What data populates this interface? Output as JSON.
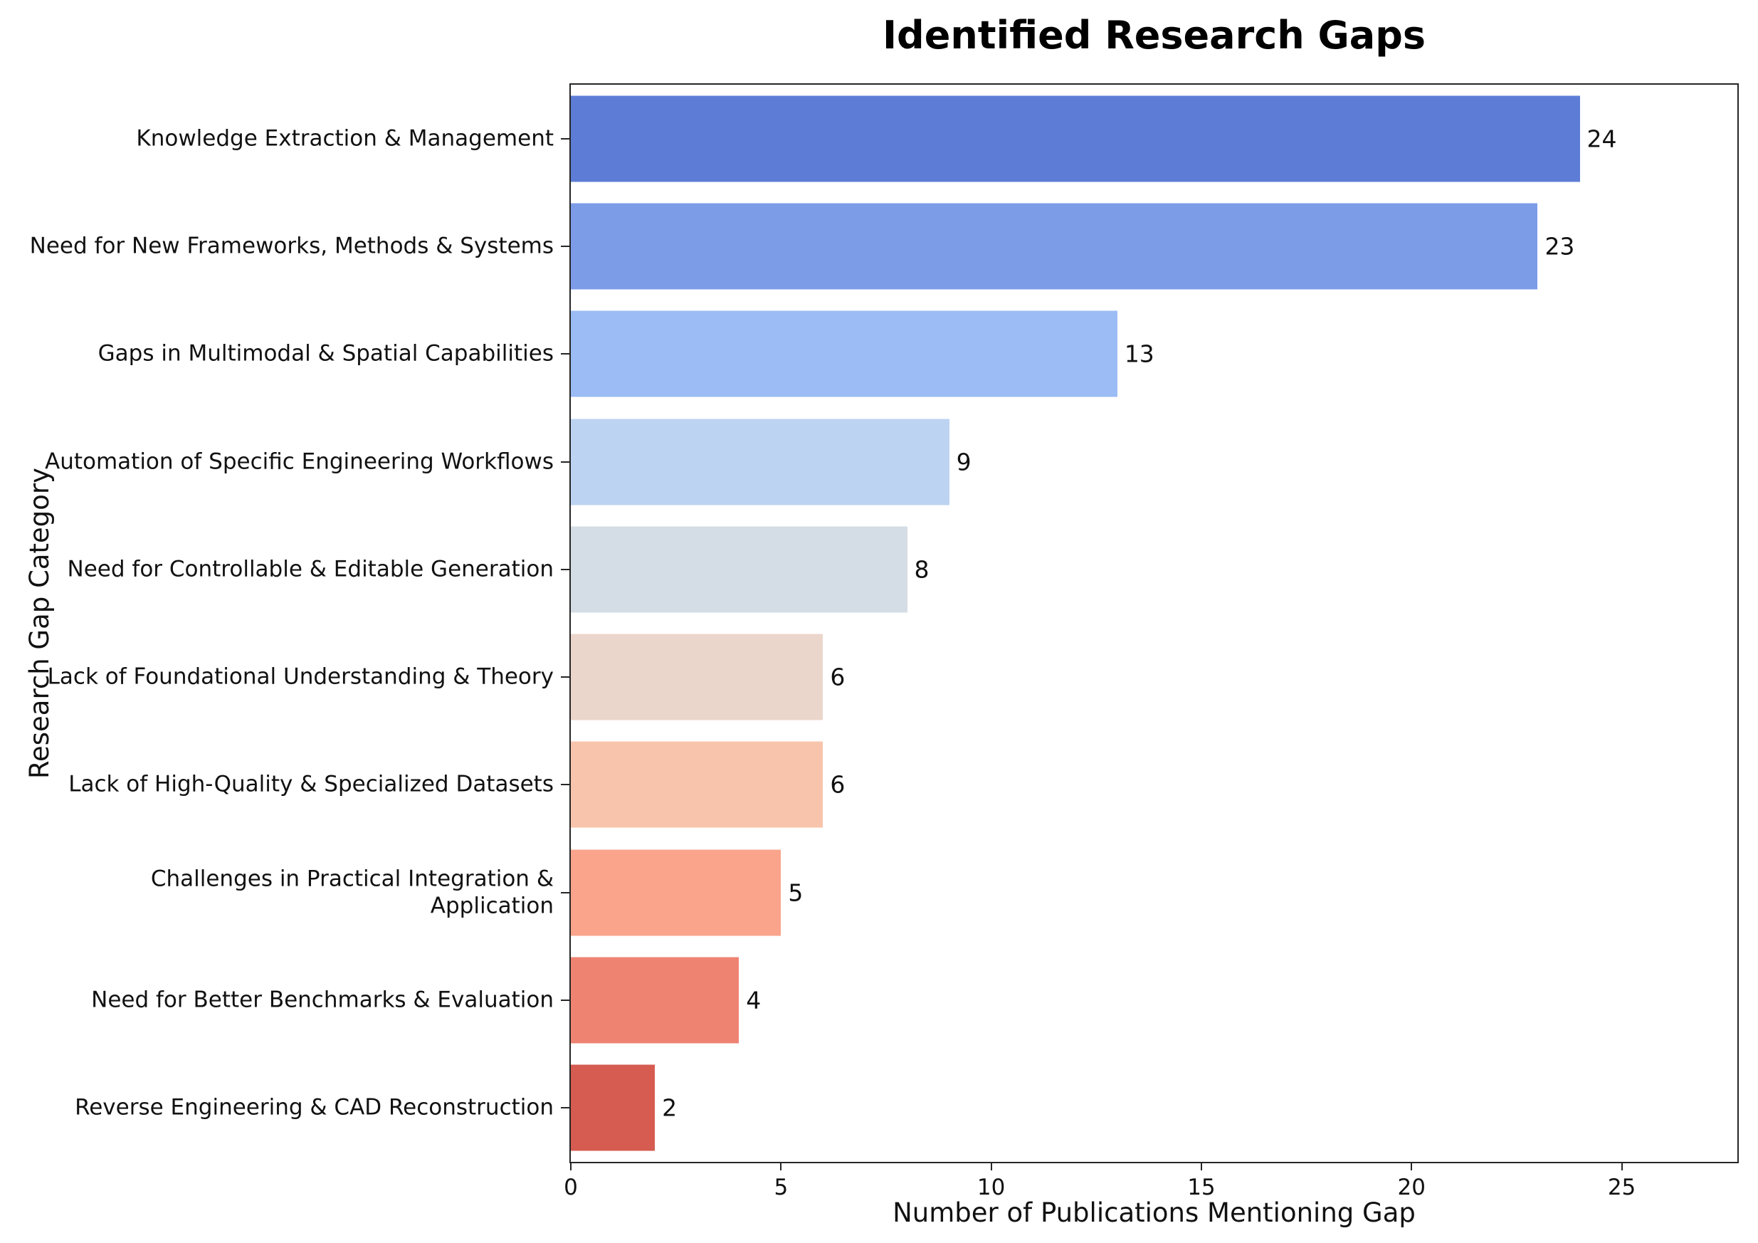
{
  "chart_data": {
    "type": "bar",
    "orientation": "horizontal",
    "title": "Identified Research Gaps",
    "xlabel": "Number of Publications Mentioning Gap",
    "ylabel": "Research Gap Category",
    "categories": [
      "Knowledge Extraction & Management",
      "Need for New Frameworks, Methods & Systems",
      "Gaps in Multimodal & Spatial Capabilities",
      "Automation of Specific Engineering Workflows",
      "Need for Controllable & Editable Generation",
      "Lack of Foundational Understanding & Theory",
      "Lack of High-Quality & Specialized Datasets",
      "Challenges in Practical Integration &\nApplication",
      "Need for Better Benchmarks & Evaluation",
      "Reverse Engineering & CAD Reconstruction"
    ],
    "values": [
      24,
      23,
      13,
      9,
      8,
      6,
      6,
      5,
      4,
      2
    ],
    "bar_colors": [
      "#5C7CD6",
      "#7D9CE8",
      "#9BBCF4",
      "#BDD3F2",
      "#D4DCE5",
      "#EBD6CB",
      "#F8C4AB",
      "#F9A48B",
      "#EE8372",
      "#D65B50"
    ],
    "xlim": [
      0,
      27.75
    ],
    "xticks": [
      0,
      5,
      10,
      15,
      20,
      25
    ],
    "grid": false,
    "legend": false,
    "colormap": "coolwarm",
    "background_color": "#ffffff",
    "spine_color": "#262626",
    "text_color": "#111111"
  }
}
